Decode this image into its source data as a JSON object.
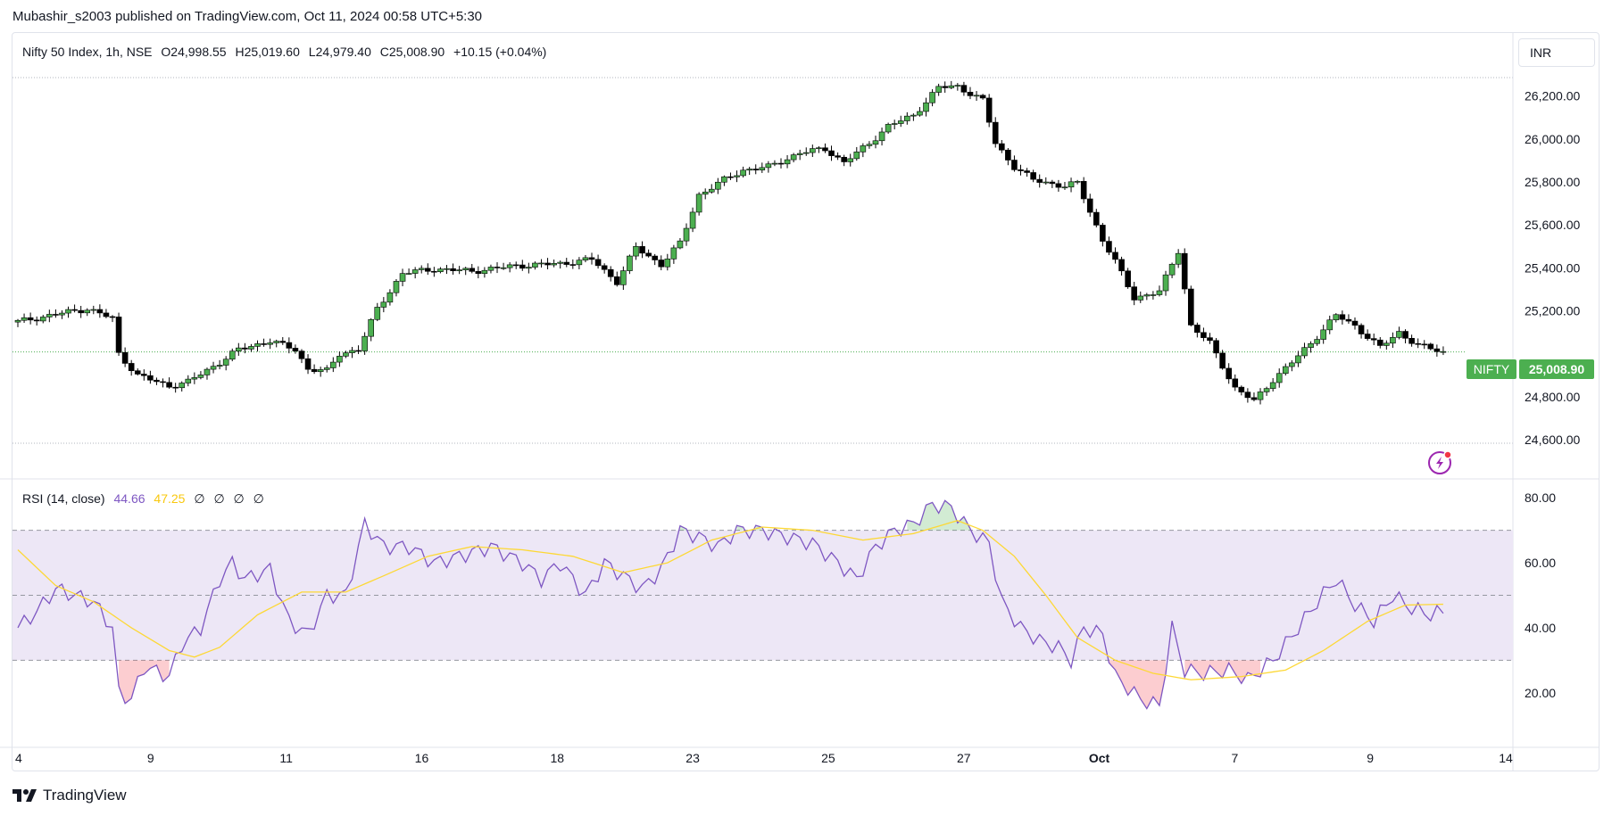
{
  "publish": {
    "text": "Mubashir_s2003 published on TradingView.com, Oct 11, 2024 00:58 UTC+5:30"
  },
  "legend": {
    "symbol": "Nifty 50 Index, 1h, NSE",
    "open": "O24,998.55",
    "high": "H25,019.60",
    "low": "L24,979.40",
    "close": "C25,008.90",
    "change": "+10.15 (+0.04%)"
  },
  "currency": "INR",
  "price_label": {
    "symbol": "NIFTY",
    "value": "25,008.90",
    "color": "#4caf50"
  },
  "rsi_legend": {
    "name": "RSI (14, close)",
    "rsi": "44.66",
    "ma": "47.25",
    "extras": [
      "∅",
      "∅",
      "∅",
      "∅"
    ]
  },
  "footer": {
    "brand": "TradingView"
  },
  "icons": {
    "flash": "lightning-icon",
    "logo": "tradingview-logo-icon"
  },
  "colors": {
    "up": "#4caf50",
    "down": "#000000",
    "rsi": "#7e57c2",
    "rsi_ma": "#fdd835",
    "band": "#ede7f6"
  },
  "chart_data": [
    {
      "type": "candlestick",
      "ylim": [
        24580,
        26290
      ],
      "y_ticks": [
        "26,200.00",
        "26,000.00",
        "25,800.00",
        "25,600.00",
        "25,400.00",
        "25,200.00",
        "24,800.00",
        "24,600.00"
      ],
      "y_tick_values": [
        26200,
        26000,
        25800,
        25600,
        25400,
        25200,
        24800,
        24600
      ],
      "x_ticks": [
        "4",
        "9",
        "11",
        "16",
        "18",
        "23",
        "25",
        "27",
        "Oct",
        "7",
        "9",
        "14"
      ],
      "last_close": 25008.9,
      "anchors": [
        [
          0,
          25150
        ],
        [
          8,
          25195
        ],
        [
          11,
          25210
        ],
        [
          15,
          25165
        ],
        [
          16,
          25000
        ],
        [
          19,
          24900
        ],
        [
          24,
          24850
        ],
        [
          27,
          24870
        ],
        [
          32,
          24960
        ],
        [
          35,
          25020
        ],
        [
          40,
          25060
        ],
        [
          44,
          25020
        ],
        [
          46,
          24930
        ],
        [
          49,
          24920
        ],
        [
          51,
          25000
        ],
        [
          54,
          25020
        ],
        [
          57,
          25210
        ],
        [
          61,
          25375
        ],
        [
          66,
          25395
        ],
        [
          72,
          25385
        ],
        [
          79,
          25410
        ],
        [
          86,
          25420
        ],
        [
          91,
          25440
        ],
        [
          95,
          25335
        ],
        [
          98,
          25495
        ],
        [
          102,
          25415
        ],
        [
          105,
          25515
        ],
        [
          108,
          25740
        ],
        [
          112,
          25810
        ],
        [
          115,
          25855
        ],
        [
          119,
          25870
        ],
        [
          124,
          25935
        ],
        [
          128,
          25955
        ],
        [
          131,
          25890
        ],
        [
          135,
          25980
        ],
        [
          138,
          26060
        ],
        [
          142,
          26110
        ],
        [
          146,
          26240
        ],
        [
          149,
          26245
        ],
        [
          153,
          26180
        ],
        [
          155,
          25980
        ],
        [
          158,
          25870
        ],
        [
          161,
          25810
        ],
        [
          166,
          25780
        ],
        [
          168,
          25795
        ],
        [
          172,
          25530
        ],
        [
          174,
          25430
        ],
        [
          177,
          25260
        ],
        [
          181,
          25290
        ],
        [
          184,
          25480
        ],
        [
          186,
          25130
        ],
        [
          189,
          25050
        ],
        [
          193,
          24840
        ],
        [
          196,
          24780
        ],
        [
          199,
          24880
        ],
        [
          202,
          24960
        ],
        [
          205,
          25050
        ],
        [
          209,
          25180
        ],
        [
          212,
          25130
        ],
        [
          216,
          25030
        ],
        [
          219,
          25100
        ],
        [
          222,
          25040
        ],
        [
          226,
          25008
        ]
      ]
    },
    {
      "type": "line",
      "title": "RSI (14, close)",
      "ylim": [
        12,
        85
      ],
      "y_ticks": [
        "80.00",
        "60.00",
        "40.00",
        "20.00"
      ],
      "y_tick_values": [
        80,
        60,
        40,
        20
      ],
      "bands": [
        70,
        50,
        30
      ],
      "series": [
        {
          "name": "RSI",
          "anchors": [
            [
              0,
              40
            ],
            [
              3,
              45
            ],
            [
              6,
              52
            ],
            [
              9,
              50
            ],
            [
              12,
              48
            ],
            [
              15,
              40
            ],
            [
              16,
              20
            ],
            [
              18,
              18
            ],
            [
              20,
              28
            ],
            [
              24,
              25
            ],
            [
              26,
              35
            ],
            [
              29,
              40
            ],
            [
              32,
              55
            ],
            [
              34,
              60
            ],
            [
              36,
              55
            ],
            [
              40,
              58
            ],
            [
              43,
              42
            ],
            [
              46,
              38
            ],
            [
              49,
              50
            ],
            [
              52,
              50
            ],
            [
              55,
              72
            ],
            [
              58,
              65
            ],
            [
              62,
              65
            ],
            [
              66,
              60
            ],
            [
              70,
              62
            ],
            [
              75,
              65
            ],
            [
              80,
              60
            ],
            [
              83,
              55
            ],
            [
              86,
              60
            ],
            [
              90,
              50
            ],
            [
              93,
              60
            ],
            [
              96,
              56
            ],
            [
              99,
              52
            ],
            [
              102,
              58
            ],
            [
              105,
              70
            ],
            [
              108,
              68
            ],
            [
              111,
              65
            ],
            [
              114,
              70
            ],
            [
              118,
              70
            ],
            [
              122,
              68
            ],
            [
              126,
              66
            ],
            [
              130,
              60
            ],
            [
              133,
              55
            ],
            [
              136,
              65
            ],
            [
              139,
              70
            ],
            [
              142,
              72
            ],
            [
              145,
              78
            ],
            [
              148,
              77
            ],
            [
              151,
              70
            ],
            [
              154,
              66
            ],
            [
              156,
              48
            ],
            [
              159,
              40
            ],
            [
              162,
              36
            ],
            [
              165,
              34
            ],
            [
              167,
              30
            ],
            [
              169,
              40
            ],
            [
              172,
              38
            ],
            [
              174,
              25
            ],
            [
              178,
              18
            ],
            [
              181,
              16
            ],
            [
              183,
              40
            ],
            [
              185,
              27
            ],
            [
              188,
              26
            ],
            [
              192,
              27
            ],
            [
              195,
              24
            ],
            [
              199,
              30
            ],
            [
              203,
              40
            ],
            [
              206,
              48
            ],
            [
              209,
              55
            ],
            [
              212,
              47
            ],
            [
              215,
              42
            ],
            [
              218,
              50
            ],
            [
              221,
              46
            ],
            [
              224,
              44
            ],
            [
              226,
              45
            ]
          ]
        },
        {
          "name": "RSI-based MA",
          "anchors": [
            [
              0,
              64
            ],
            [
              6,
              53
            ],
            [
              12,
              48
            ],
            [
              18,
              40
            ],
            [
              24,
              33
            ],
            [
              28,
              31
            ],
            [
              32,
              34
            ],
            [
              38,
              44
            ],
            [
              45,
              51
            ],
            [
              52,
              51
            ],
            [
              58,
              56
            ],
            [
              65,
              62
            ],
            [
              72,
              65
            ],
            [
              80,
              64
            ],
            [
              88,
              62
            ],
            [
              96,
              57
            ],
            [
              103,
              60
            ],
            [
              110,
              67
            ],
            [
              118,
              71
            ],
            [
              126,
              70
            ],
            [
              134,
              67
            ],
            [
              142,
              69
            ],
            [
              149,
              73
            ],
            [
              153,
              70
            ],
            [
              158,
              62
            ],
            [
              163,
              50
            ],
            [
              168,
              37
            ],
            [
              174,
              30
            ],
            [
              180,
              26
            ],
            [
              186,
              24
            ],
            [
              194,
              25
            ],
            [
              201,
              27
            ],
            [
              207,
              33
            ],
            [
              214,
              42
            ],
            [
              220,
              47
            ],
            [
              226,
              47.25
            ]
          ]
        }
      ]
    }
  ]
}
